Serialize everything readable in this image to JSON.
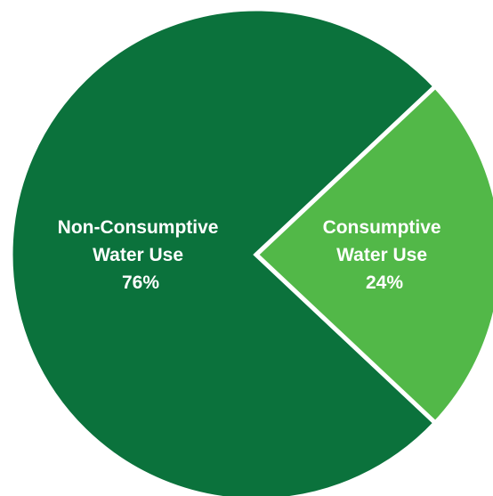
{
  "chart_data": {
    "type": "pie",
    "title": "",
    "series": [
      {
        "name": "Water Use",
        "values": [
          76,
          24
        ]
      }
    ],
    "categories": [
      "Non-Consumptive Water Use",
      "Consumptive Water Use"
    ],
    "slices": [
      {
        "label_lines": [
          "Non-Consumptive",
          "Water Use"
        ],
        "value": 76,
        "value_label": "76%",
        "color": "#0b723c"
      },
      {
        "label_lines": [
          "Consumptive",
          "Water Use"
        ],
        "value": 24,
        "value_label": "24%",
        "color": "#52b848"
      }
    ],
    "legend": "none"
  }
}
